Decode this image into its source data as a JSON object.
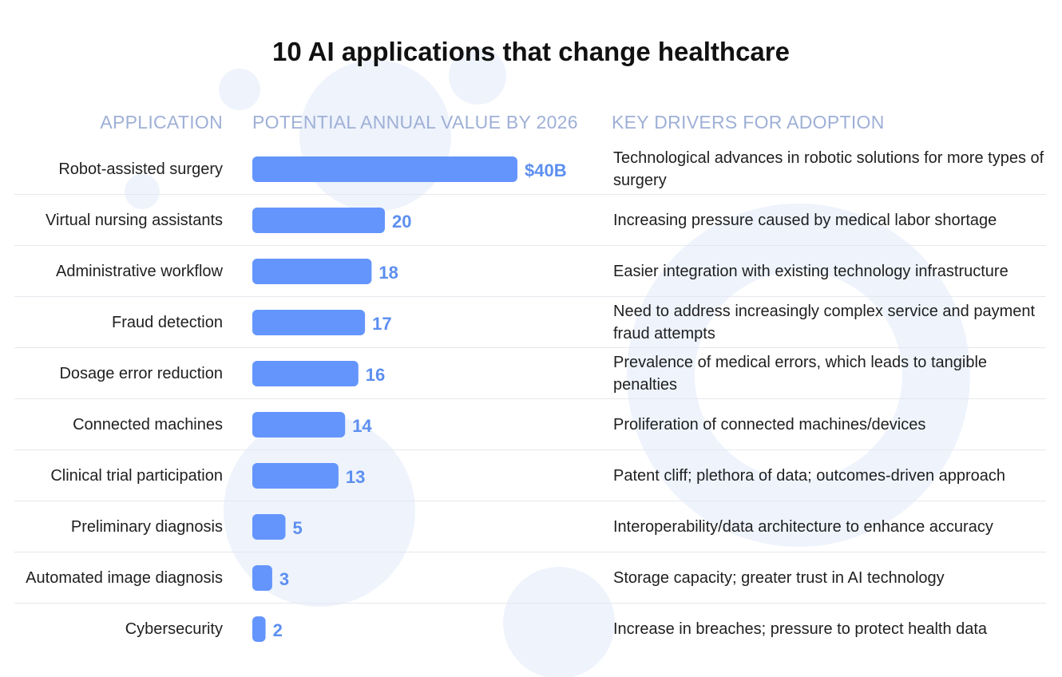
{
  "title": "10 AI applications that change healthcare",
  "headers": {
    "application": "APPLICATION",
    "value": "POTENTIAL ANNUAL VALUE BY 2026",
    "drivers": "KEY DRIVERS FOR ADOPTION"
  },
  "colors": {
    "bar": "#6495fc",
    "value_label": "#5d8ff0",
    "header": "#9fb0d6",
    "background_shape": "#eef3fc"
  },
  "chart_data": {
    "type": "bar",
    "orientation": "horizontal",
    "title": "10 AI applications that change healthcare",
    "xlabel": "POTENTIAL ANNUAL VALUE BY 2026",
    "ylabel": "APPLICATION",
    "unit": "billion USD",
    "xlim": [
      0,
      40
    ],
    "grid": false,
    "categories": [
      "Robot-assisted surgery",
      "Virtual nursing assistants",
      "Administrative workflow",
      "Fraud detection",
      "Dosage error reduction",
      "Connected machines",
      "Clinical trial participation",
      "Preliminary diagnosis",
      "Automated image diagnosis",
      "Cybersecurity"
    ],
    "values": [
      40,
      20,
      18,
      17,
      16,
      14,
      13,
      5,
      3,
      2
    ],
    "value_labels": [
      "$40B",
      "20",
      "18",
      "17",
      "16",
      "14",
      "13",
      "5",
      "3",
      "2"
    ],
    "drivers": [
      "Technological advances in robotic solutions for more types of surgery",
      "Increasing pressure caused by medical labor shortage",
      "Easier integration with existing technology infrastructure",
      "Need to address increasingly complex service and payment fraud attempts",
      "Prevalence of medical errors, which leads to tangible penalties",
      "Proliferation of connected machines/devices",
      "Patent cliff; plethora of data; outcomes-driven approach",
      "Interoperability/data architecture to enhance accuracy",
      "Storage capacity; greater trust in AI technology",
      "Increase in breaches; pressure to protect health data"
    ]
  }
}
